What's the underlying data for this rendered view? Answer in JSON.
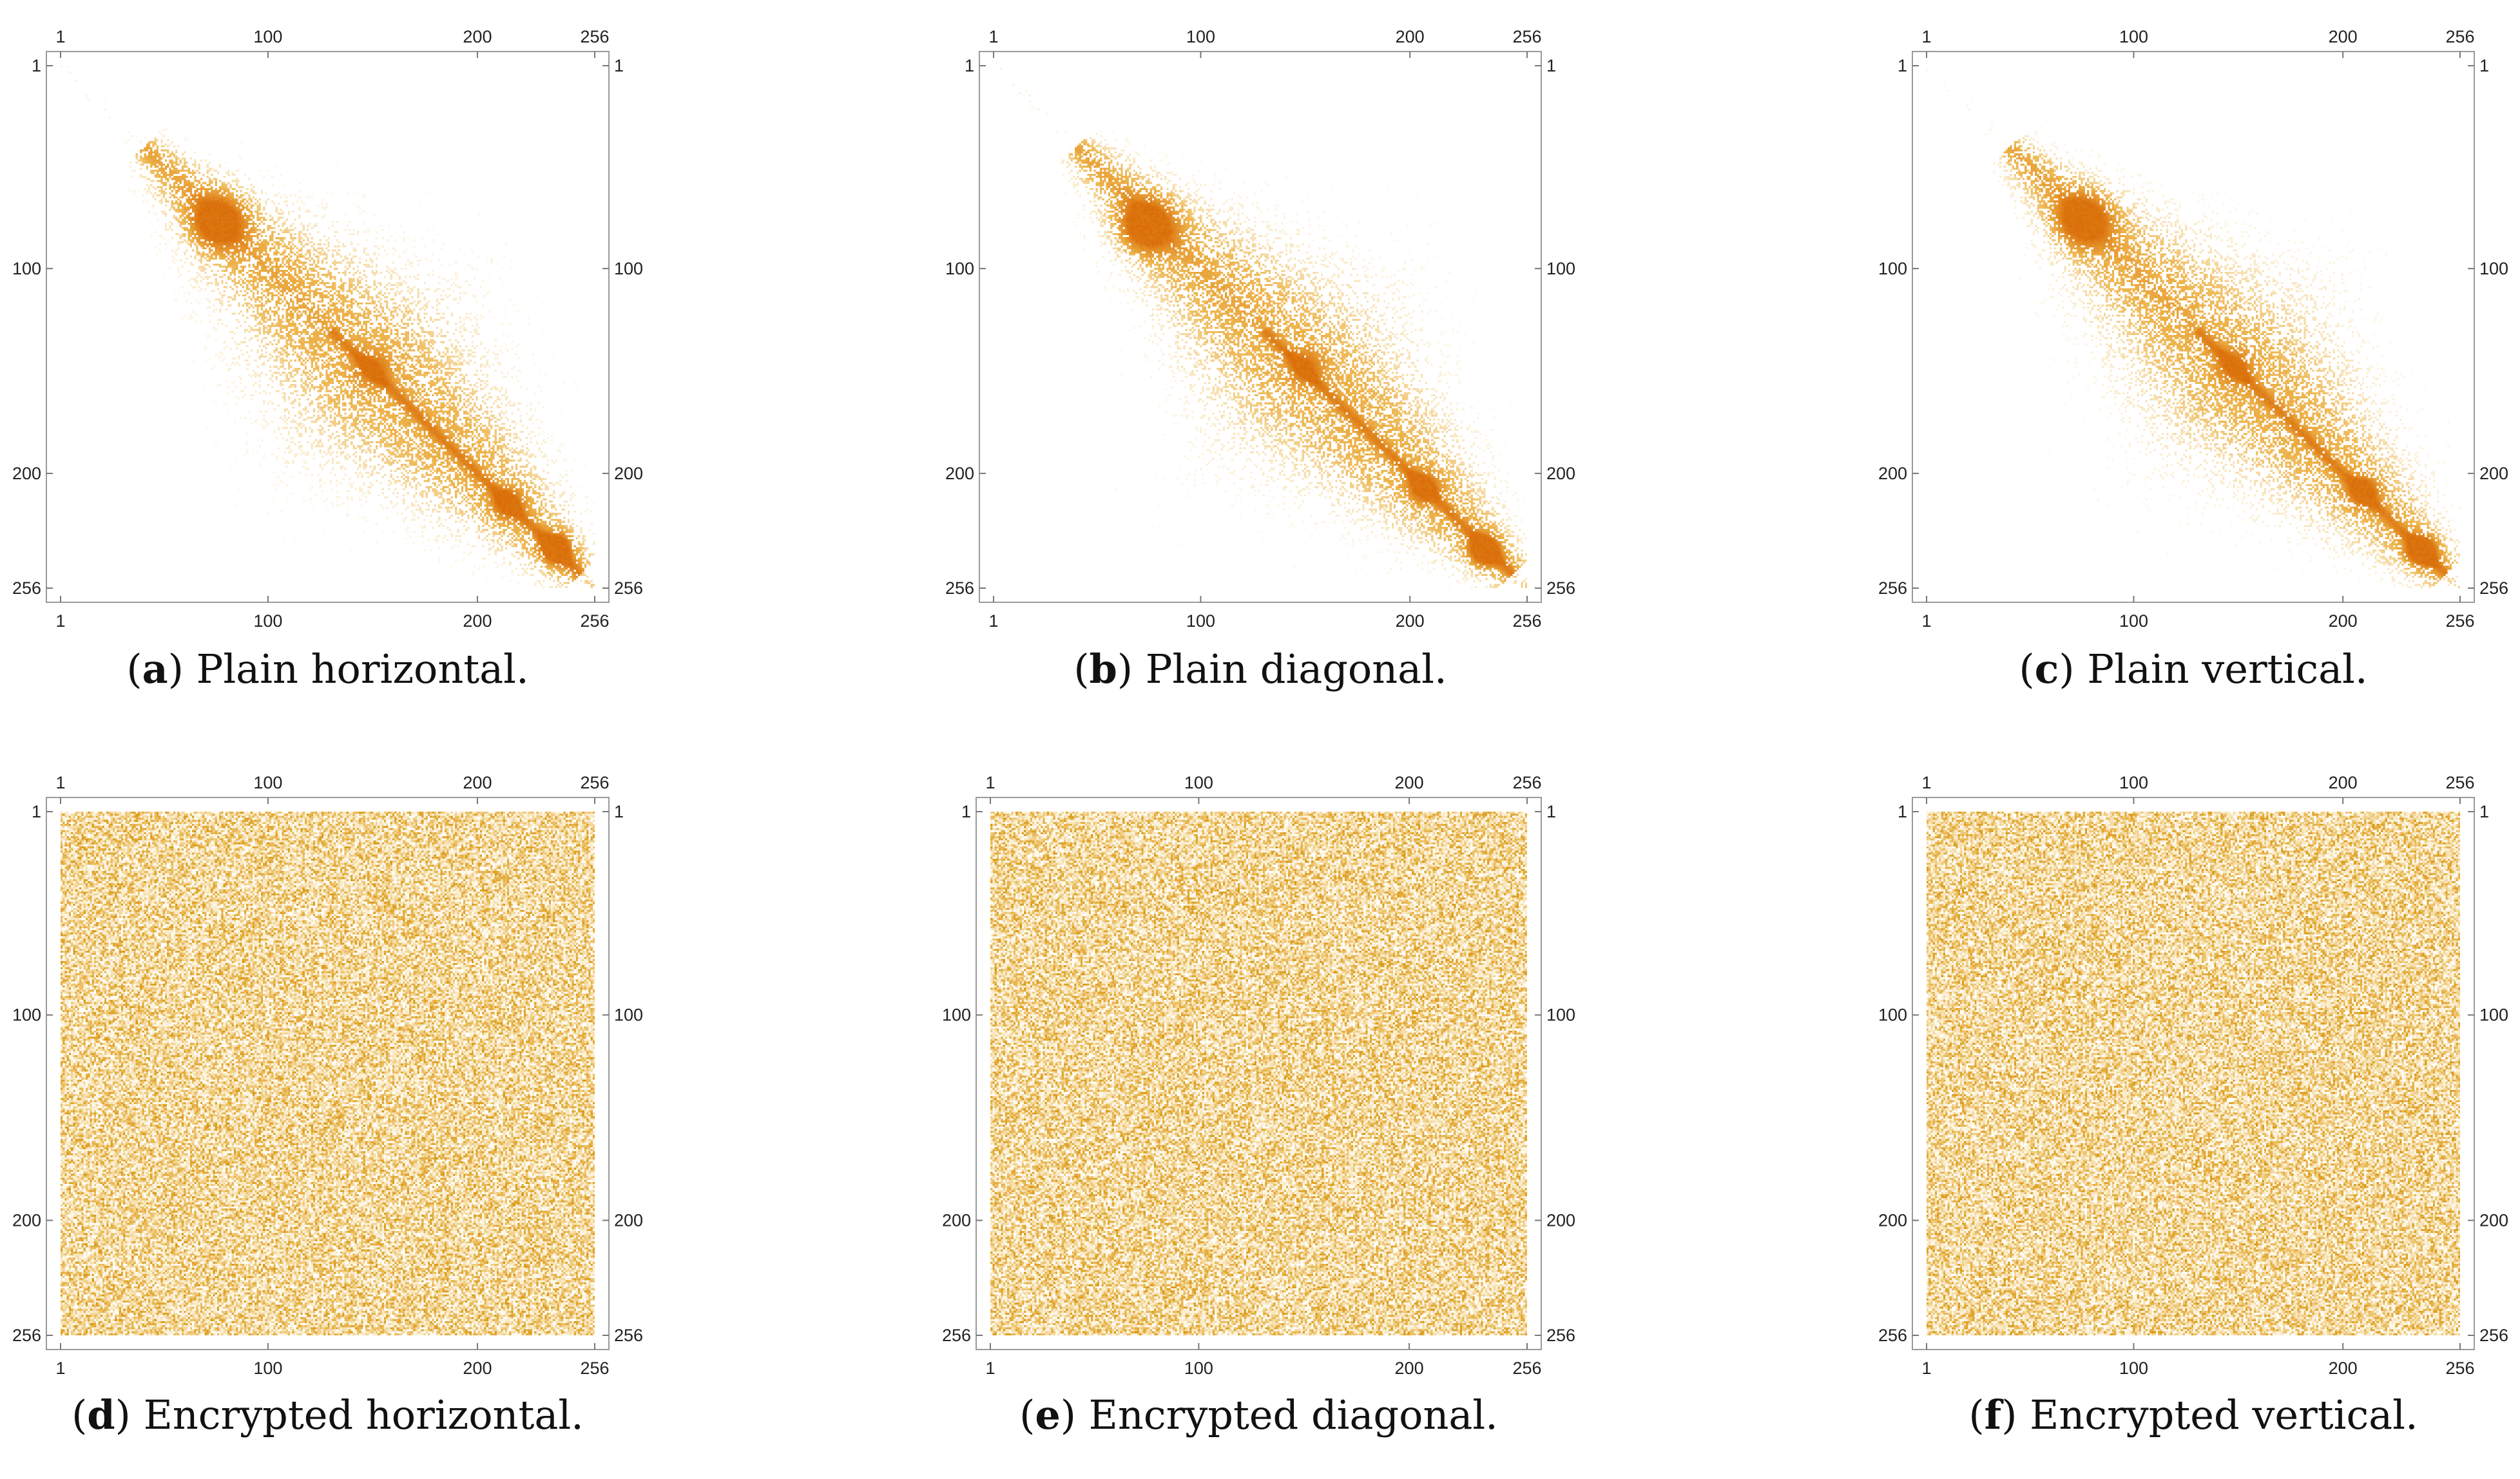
{
  "chart_data": [
    {
      "type": "heatmap",
      "panel_letter": "a",
      "caption": "Plain horizontal.",
      "pattern": "correlated",
      "x_ticks": [
        "1",
        "100",
        "200",
        "256"
      ],
      "y_ticks": [
        "1",
        "100",
        "200",
        "256"
      ],
      "xlim": [
        1,
        256
      ],
      "ylim": [
        1,
        256
      ],
      "hotspots": [
        {
          "x": 76,
          "y": 77,
          "intensity": 0.85,
          "spread": 9
        },
        {
          "x": 238,
          "y": 237,
          "intensity": 1.0,
          "spread": 5
        },
        {
          "x": 215,
          "y": 215,
          "intensity": 0.7,
          "spread": 5
        },
        {
          "x": 150,
          "y": 149,
          "intensity": 0.45,
          "spread": 6
        }
      ],
      "colors": {
        "low": "#fbf3d6",
        "mid": "#eeb34a",
        "high": "#d96a05"
      }
    },
    {
      "type": "heatmap",
      "panel_letter": "b",
      "caption": "Plain diagonal.",
      "pattern": "correlated",
      "x_ticks": [
        "1",
        "100",
        "200",
        "256"
      ],
      "y_ticks": [
        "1",
        "100",
        "200",
        "256"
      ],
      "xlim": [
        1,
        256
      ],
      "ylim": [
        1,
        256
      ],
      "hotspots": [
        {
          "x": 74,
          "y": 79,
          "intensity": 0.9,
          "spread": 9
        },
        {
          "x": 236,
          "y": 238,
          "intensity": 1.0,
          "spread": 5
        },
        {
          "x": 207,
          "y": 207,
          "intensity": 0.7,
          "spread": 5
        },
        {
          "x": 150,
          "y": 148,
          "intensity": 0.45,
          "spread": 6
        }
      ],
      "colors": {
        "low": "#fbf3d6",
        "mid": "#eeb34a",
        "high": "#d96a05"
      }
    },
    {
      "type": "heatmap",
      "panel_letter": "c",
      "caption": "Plain vertical.",
      "pattern": "correlated",
      "x_ticks": [
        "1",
        "100",
        "200",
        "256"
      ],
      "y_ticks": [
        "1",
        "100",
        "200",
        "256"
      ],
      "xlim": [
        1,
        256
      ],
      "ylim": [
        1,
        256
      ],
      "hotspots": [
        {
          "x": 76,
          "y": 76,
          "intensity": 0.85,
          "spread": 9
        },
        {
          "x": 238,
          "y": 238,
          "intensity": 1.0,
          "spread": 5
        },
        {
          "x": 210,
          "y": 209,
          "intensity": 0.7,
          "spread": 5
        },
        {
          "x": 148,
          "y": 148,
          "intensity": 0.45,
          "spread": 6
        }
      ],
      "colors": {
        "low": "#fbf3d6",
        "mid": "#eeb34a",
        "high": "#d96a05"
      }
    },
    {
      "type": "heatmap",
      "panel_letter": "d",
      "caption": "Encrypted horizontal.",
      "pattern": "uniform",
      "x_ticks": [
        "1",
        "100",
        "200",
        "256"
      ],
      "y_ticks": [
        "1",
        "100",
        "200",
        "256"
      ],
      "xlim": [
        1,
        256
      ],
      "ylim": [
        1,
        256
      ],
      "colors": {
        "low": "#fdf6e3",
        "mid": "#eec36a",
        "high": "#d9960f"
      }
    },
    {
      "type": "heatmap",
      "panel_letter": "e",
      "caption": "Encrypted diagonal.",
      "pattern": "uniform",
      "x_ticks": [
        "1",
        "100",
        "200",
        "256"
      ],
      "y_ticks": [
        "1",
        "100",
        "200",
        "256"
      ],
      "xlim": [
        1,
        256
      ],
      "ylim": [
        1,
        256
      ],
      "colors": {
        "low": "#fdf6e3",
        "mid": "#eec36a",
        "high": "#d9960f"
      }
    },
    {
      "type": "heatmap",
      "panel_letter": "f",
      "caption": "Encrypted vertical.",
      "pattern": "uniform",
      "x_ticks": [
        "1",
        "100",
        "200",
        "256"
      ],
      "y_ticks": [
        "1",
        "100",
        "200",
        "256"
      ],
      "xlim": [
        1,
        256
      ],
      "ylim": [
        1,
        256
      ],
      "colors": {
        "low": "#fdf6e3",
        "mid": "#eec36a",
        "high": "#d9960f"
      }
    }
  ]
}
